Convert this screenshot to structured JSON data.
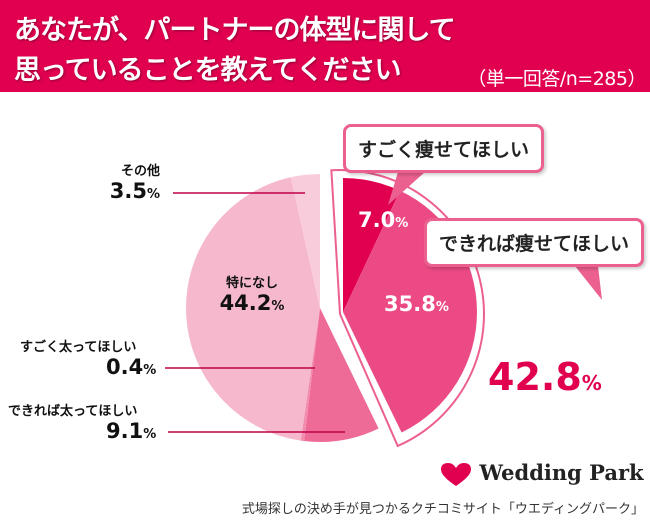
{
  "header": {
    "title_line1": "あなたが、パートナーの体型に関して",
    "title_line2": "思っていることを教えてください",
    "subtitle": "（単一回答/n=285）"
  },
  "chart_data": {
    "type": "pie",
    "slices": [
      {
        "label": "すごく痩せてほしい",
        "value": 7.0,
        "color": "#e0004f"
      },
      {
        "label": "できれば痩せてほしい",
        "value": 35.8,
        "color": "#ec4a85"
      },
      {
        "label": "できれば太ってほしい",
        "value": 9.1,
        "color": "#ef6b97"
      },
      {
        "label": "すごく太ってほしい",
        "value": 0.4,
        "color": "#f28db0"
      },
      {
        "label": "特になし",
        "value": 44.2,
        "color": "#f5b8cd"
      },
      {
        "label": "その他",
        "value": 3.5,
        "color": "#f9ccdb"
      }
    ],
    "exploded_group_total": "42.8",
    "unit": "%"
  },
  "labels": {
    "sonota": {
      "name": "その他",
      "value": "3.5"
    },
    "sugoku_futo": {
      "name": "すごく太ってほしい",
      "value": "0.4"
    },
    "dekireba_futo": {
      "name": "できれば太ってほしい",
      "value": "9.1"
    },
    "tokuni": {
      "name": "特になし",
      "value": "44.2"
    },
    "sugoku_yase": {
      "name": "すごく痩せてほしい",
      "value": "7.0"
    },
    "dekireba_yase": {
      "name": "できれば痩せてほしい",
      "value": "35.8"
    },
    "unit": "%",
    "total": "42.8"
  },
  "footer": {
    "logo": "Wedding Park",
    "caption": "式場探しの決め手が見つかるクチコミサイト「ウエディングパーク」"
  }
}
